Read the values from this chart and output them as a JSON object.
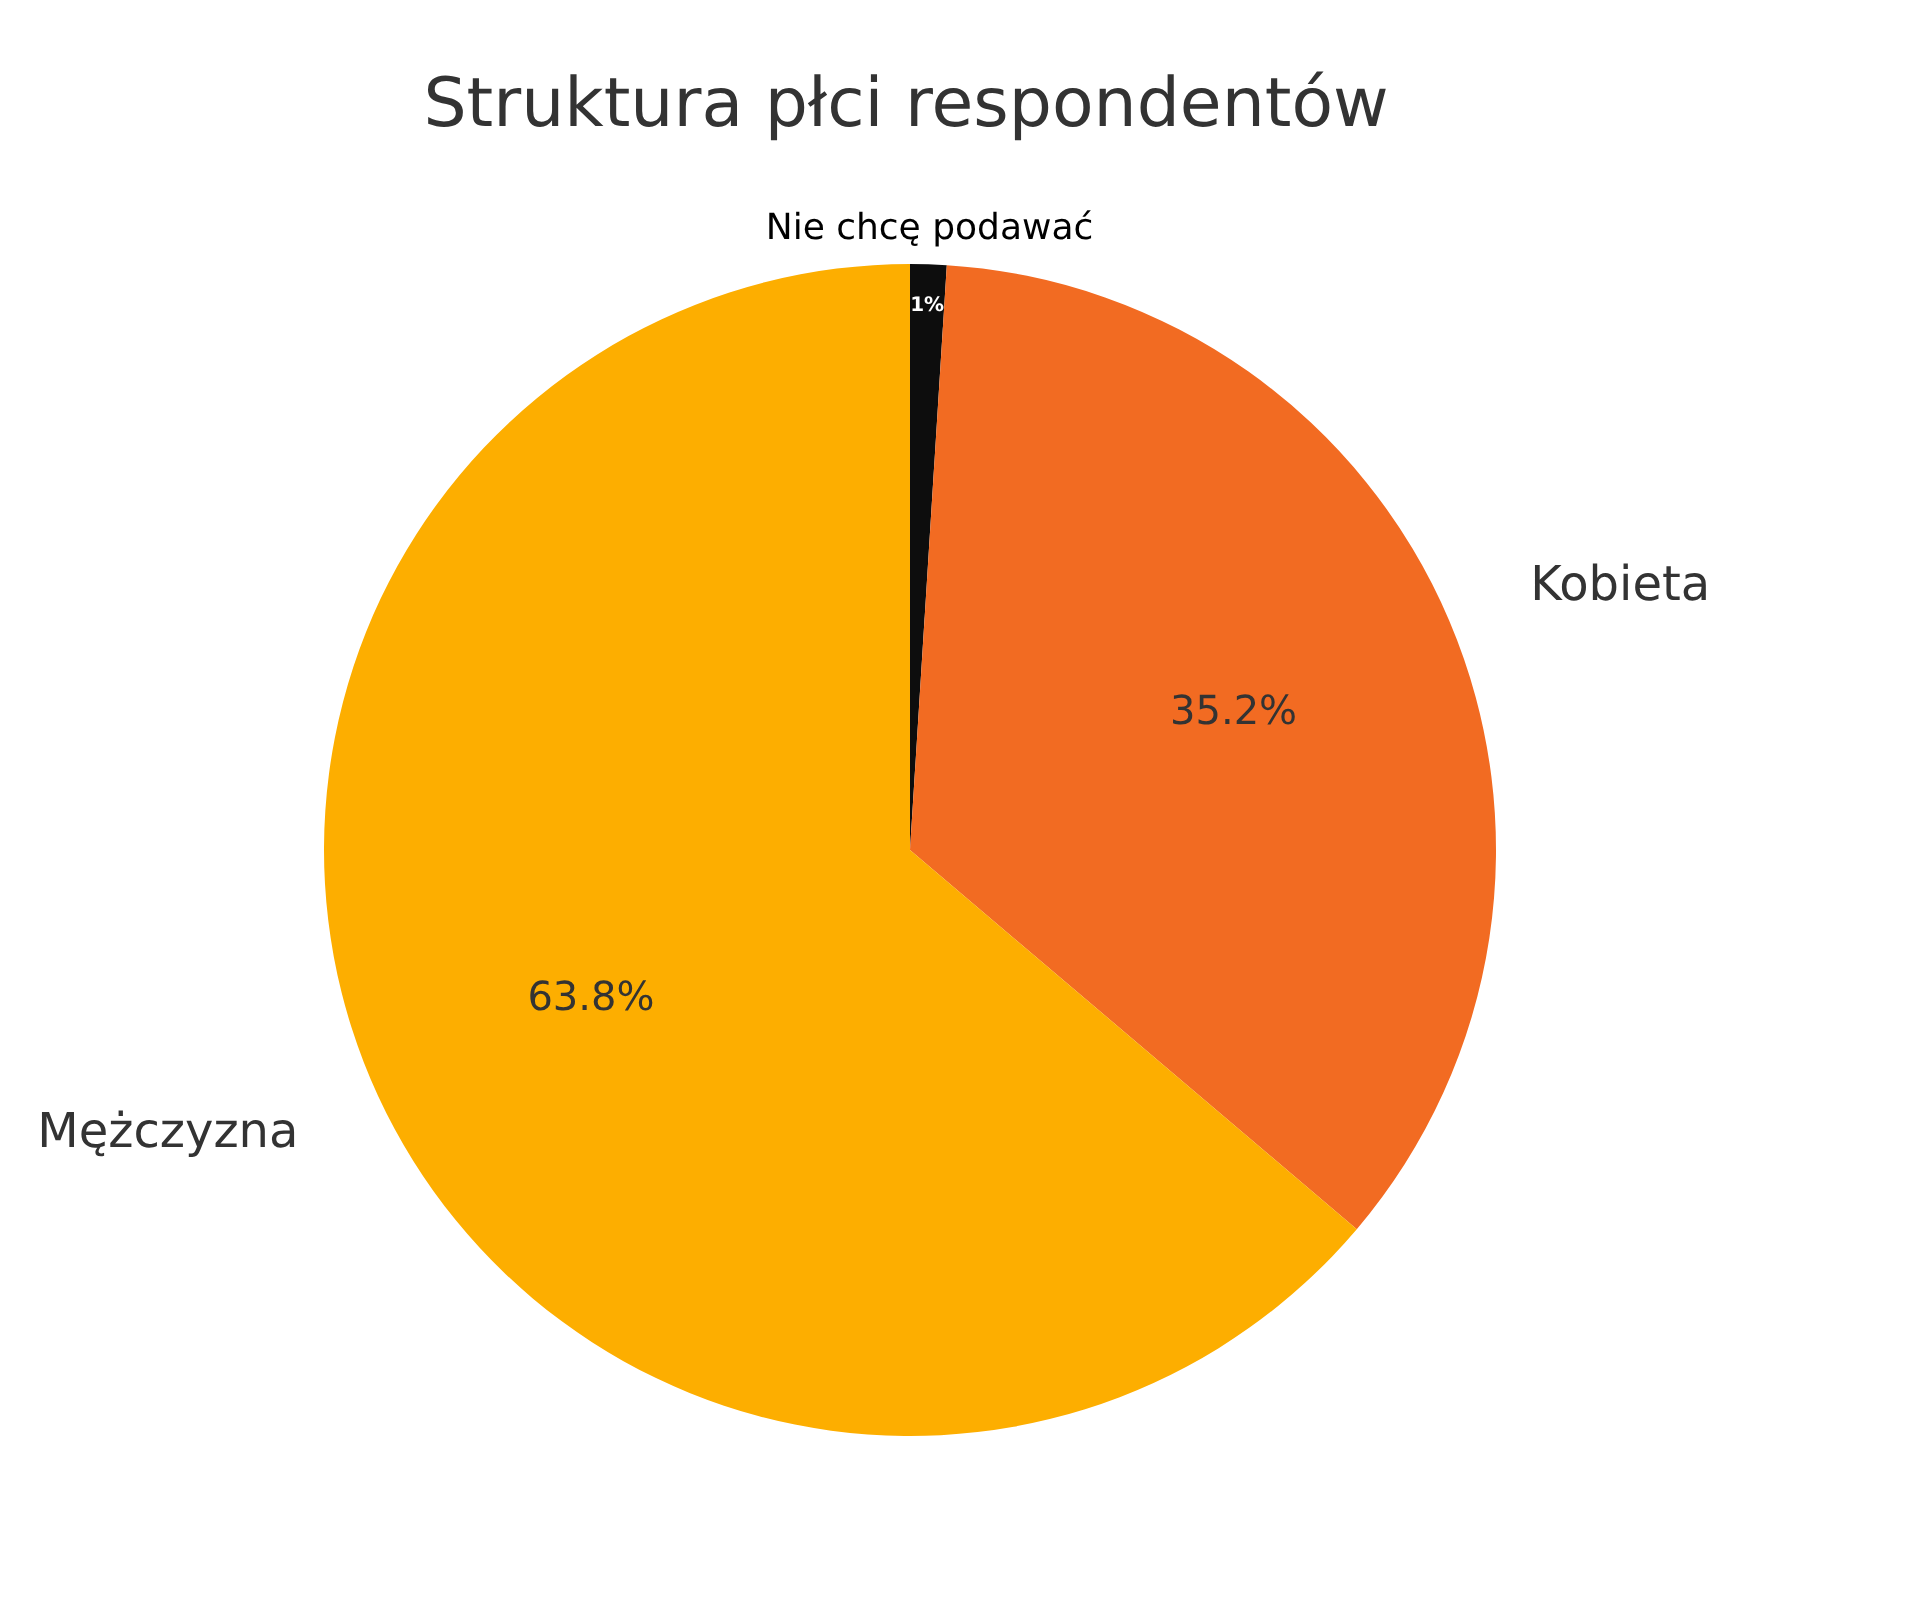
{
  "chart_data": {
    "type": "pie",
    "title": "Struktura płci respondentów",
    "categories": [
      "Nie chcę podawać",
      "Kobieta",
      "Mężczyzna"
    ],
    "values": [
      1,
      35.2,
      63.8
    ],
    "colors": [
      "#0d0d0d",
      "#f26b22",
      "#fdae00"
    ],
    "value_labels": [
      "1%",
      "35.2%",
      "63.8%"
    ]
  }
}
